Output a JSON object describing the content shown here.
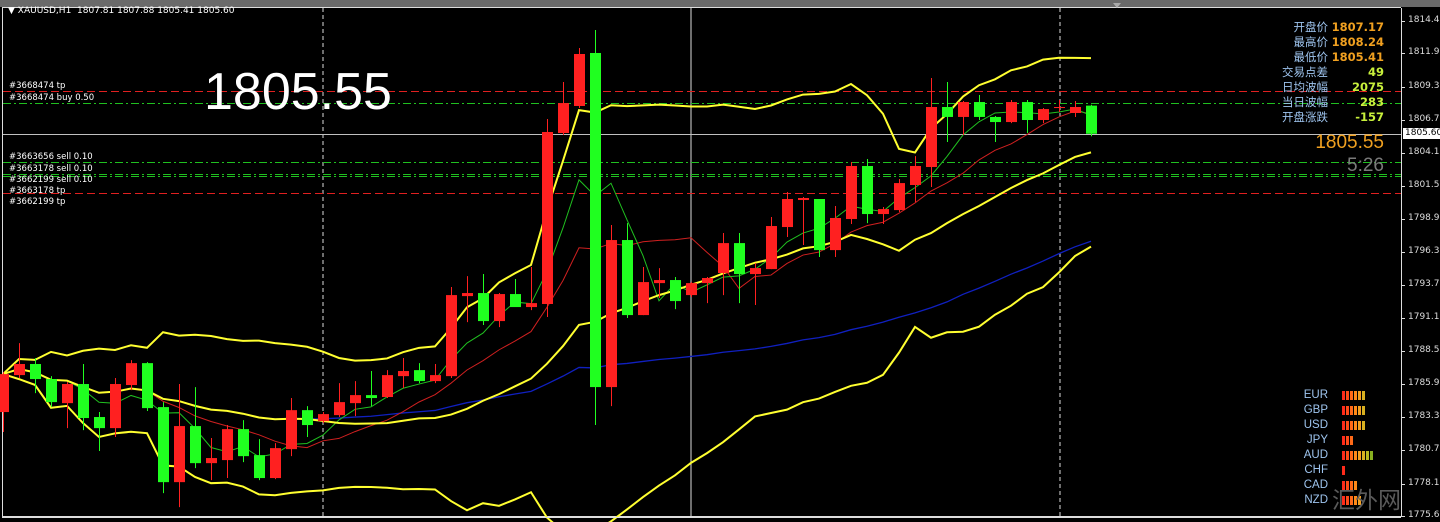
{
  "header": {
    "symbol": "XAUUSD,H1",
    "ohlc": "1807.81 1807.88 1805.41 1805.60"
  },
  "big_price": "1805.55",
  "info_panel": [
    {
      "label": "开盘价",
      "value": "1807.17",
      "color": "#f0a020"
    },
    {
      "label": "最高价",
      "value": "1808.24",
      "color": "#f0a020"
    },
    {
      "label": "最低价",
      "value": "1805.41",
      "color": "#f0a020"
    },
    {
      "label": "交易点差",
      "value": "49",
      "color": "#c8f03c"
    },
    {
      "label": "日均波幅",
      "value": "2075",
      "color": "#c8f03c"
    },
    {
      "label": "当日波幅",
      "value": "283",
      "color": "#c8f03c"
    },
    {
      "label": "开盘涨跌",
      "value": "-157",
      "color": "#c8f03c"
    }
  ],
  "bid_price": "1805.55",
  "bar_timer": "5:26",
  "current_price_label": "1805.60",
  "currency_strength": [
    {
      "currency": "EUR",
      "level": 6
    },
    {
      "currency": "GBP",
      "level": 6
    },
    {
      "currency": "USD",
      "level": 6
    },
    {
      "currency": "JPY",
      "level": 3
    },
    {
      "currency": "AUD",
      "level": 8
    },
    {
      "currency": "CHF",
      "level": 1
    },
    {
      "currency": "CAD",
      "level": 4
    },
    {
      "currency": "NZD",
      "level": 5
    }
  ],
  "watermark": "汇外网",
  "colors": {
    "background": "#000000",
    "bull_candle": "#ff2020",
    "bear_candle": "#20ff20",
    "bollinger": "#ffff30",
    "ma_fast": "#20c020",
    "ma_mid": "#d02020",
    "ma_slow": "#1020c0",
    "tp_line": "#e02020",
    "order_line": "#20c020",
    "bid_line": "#c0c0c0"
  },
  "orders": [
    {
      "label": "#3668474 tp",
      "price": 1808.96,
      "type": "tp"
    },
    {
      "label": "#3668474 buy 0.50",
      "price": 1808.01,
      "type": "order"
    },
    {
      "label": "#3663656 sell 0.10",
      "price": 1803.38,
      "type": "order"
    },
    {
      "label": "#3663178 sell 0.10",
      "price": 1802.45,
      "type": "order"
    },
    {
      "label": "#3662199 sell 0.10",
      "price": 1802.25,
      "type": "order"
    },
    {
      "label": "#3663178 tp",
      "price": 1800.95,
      "type": "tp"
    },
    {
      "label": "#3662199 tp",
      "price": 1800.95,
      "type": "tp"
    }
  ],
  "chart_data": {
    "type": "candlestick",
    "symbol": "XAUUSD",
    "timeframe": "H1",
    "ylim": [
      1775.6,
      1814.45
    ],
    "y_ticks": [
      "1814.45",
      "1811.90",
      "1809.30",
      "1806.70",
      "1804.10",
      "1801.50",
      "1798.90",
      "1796.30",
      "1793.75",
      "1791.15",
      "1788.55",
      "1785.95",
      "1783.35",
      "1780.75",
      "1778.15",
      "1775.60"
    ],
    "indicators": [
      "Bollinger Bands",
      "moving average (fast, green)",
      "moving average (red)",
      "moving average (slow, blue)"
    ],
    "candles": [
      [
        1783.76,
        1786.9,
        1782.19,
        1786.74
      ],
      [
        1786.66,
        1789.17,
        1786.43,
        1787.53
      ],
      [
        1787.53,
        1788.0,
        1785.25,
        1786.35
      ],
      [
        1786.35,
        1786.58,
        1784.15,
        1784.54
      ],
      [
        1784.46,
        1786.11,
        1782.5,
        1785.96
      ],
      [
        1785.96,
        1787.53,
        1782.34,
        1783.29
      ],
      [
        1783.37,
        1783.76,
        1780.7,
        1782.5
      ],
      [
        1782.5,
        1786.43,
        1781.8,
        1785.96
      ],
      [
        1785.88,
        1787.84,
        1785.48,
        1787.6
      ],
      [
        1787.6,
        1787.68,
        1783.84,
        1784.07
      ],
      [
        1784.15,
        1784.54,
        1777.4,
        1778.26
      ],
      [
        1778.26,
        1785.96,
        1776.3,
        1782.66
      ],
      [
        1782.66,
        1785.72,
        1779.36,
        1779.75
      ],
      [
        1779.75,
        1781.72,
        1778.42,
        1780.15
      ],
      [
        1779.99,
        1782.74,
        1778.58,
        1782.42
      ],
      [
        1782.42,
        1783.13,
        1779.83,
        1780.3
      ],
      [
        1780.38,
        1781.64,
        1778.42,
        1778.58
      ],
      [
        1778.58,
        1781.32,
        1778.5,
        1780.93
      ],
      [
        1780.85,
        1784.86,
        1780.3,
        1783.91
      ],
      [
        1783.91,
        1784.23,
        1781.8,
        1782.74
      ],
      [
        1783.05,
        1783.76,
        1782.89,
        1783.6
      ],
      [
        1783.52,
        1786.03,
        1783.37,
        1784.54
      ],
      [
        1784.46,
        1786.19,
        1783.44,
        1785.09
      ],
      [
        1785.09,
        1786.98,
        1784.23,
        1784.86
      ],
      [
        1784.94,
        1787.05,
        1784.86,
        1786.66
      ],
      [
        1786.58,
        1788.0,
        1785.64,
        1786.98
      ],
      [
        1787.05,
        1787.6,
        1786.03,
        1786.19
      ],
      [
        1786.19,
        1787.53,
        1786.03,
        1786.66
      ],
      [
        1786.58,
        1793.57,
        1786.43,
        1792.94
      ],
      [
        1792.86,
        1794.43,
        1790.82,
        1793.1
      ],
      [
        1793.1,
        1794.59,
        1790.59,
        1790.9
      ],
      [
        1790.9,
        1793.1,
        1790.43,
        1793.02
      ],
      [
        1793.02,
        1794.2,
        1792.0,
        1792.0
      ],
      [
        1792.0,
        1795.14,
        1791.76,
        1792.31
      ],
      [
        1792.24,
        1806.76,
        1791.22,
        1805.74
      ],
      [
        1805.66,
        1809.66,
        1805.5,
        1808.01
      ],
      [
        1807.78,
        1812.33,
        1807.62,
        1811.86
      ],
      [
        1811.94,
        1813.74,
        1782.74,
        1785.72
      ],
      [
        1785.72,
        1798.44,
        1784.23,
        1797.26
      ],
      [
        1797.26,
        1798.59,
        1791.14,
        1791.37
      ],
      [
        1791.37,
        1795.14,
        1791.37,
        1793.96
      ],
      [
        1793.88,
        1795.06,
        1792.71,
        1794.12
      ],
      [
        1794.12,
        1794.36,
        1791.84,
        1792.47
      ],
      [
        1792.94,
        1793.96,
        1792.79,
        1793.88
      ],
      [
        1793.88,
        1794.36,
        1792.31,
        1794.28
      ],
      [
        1794.67,
        1797.81,
        1792.94,
        1797.02
      ],
      [
        1797.02,
        1797.81,
        1792.31,
        1794.59
      ],
      [
        1794.59,
        1795.45,
        1792.16,
        1795.06
      ],
      [
        1794.98,
        1799.07,
        1794.98,
        1798.36
      ],
      [
        1798.28,
        1801.03,
        1797.5,
        1800.48
      ],
      [
        1800.4,
        1800.64,
        1796.87,
        1800.56
      ],
      [
        1800.48,
        1800.48,
        1795.93,
        1796.47
      ],
      [
        1796.47,
        1799.93,
        1795.93,
        1798.99
      ],
      [
        1798.91,
        1803.38,
        1798.52,
        1803.07
      ],
      [
        1803.07,
        1803.62,
        1798.59,
        1799.3
      ],
      [
        1799.3,
        1799.85,
        1798.52,
        1799.69
      ],
      [
        1799.61,
        1802.05,
        1799.46,
        1801.73
      ],
      [
        1801.58,
        1803.85,
        1800.24,
        1803.07
      ],
      [
        1802.99,
        1809.98,
        1801.42,
        1807.7
      ],
      [
        1807.7,
        1809.66,
        1804.95,
        1806.92
      ],
      [
        1806.92,
        1808.17,
        1805.5,
        1808.09
      ],
      [
        1808.09,
        1808.64,
        1806.68,
        1806.92
      ],
      [
        1806.92,
        1806.99,
        1804.95,
        1806.52
      ],
      [
        1806.52,
        1808.25,
        1806.44,
        1808.09
      ],
      [
        1808.09,
        1808.25,
        1805.66,
        1806.68
      ],
      [
        1806.68,
        1807.62,
        1806.44,
        1807.54
      ],
      [
        1807.62,
        1808.25,
        1807.31,
        1807.7
      ],
      [
        1807.23,
        1808.17,
        1806.92,
        1807.7
      ],
      [
        1807.81,
        1807.88,
        1805.41,
        1805.6
      ]
    ],
    "bid": 1805.6
  }
}
